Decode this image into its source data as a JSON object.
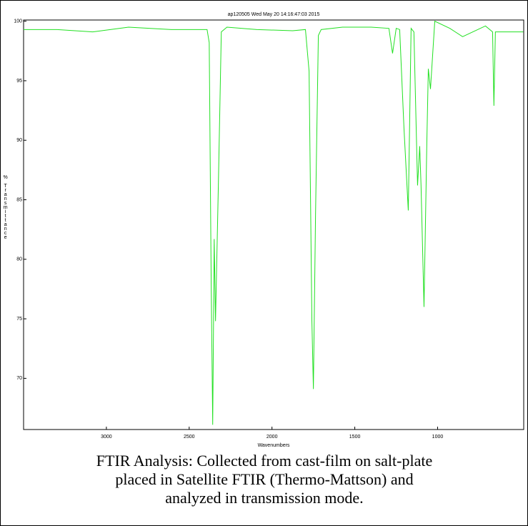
{
  "chart_data": {
    "type": "line",
    "title": "ap120505  Wed May 20 14:16:47:03 2015",
    "x_label": "Wavenumbers",
    "y_label": "% Transmittance",
    "caption": "FTIR Analysis: Collected from cast-film on salt-plate placed in Satellite FTIR (Thermo-Mattson) and analyzed in transmission mode.",
    "xlim": [
      3500,
      480
    ],
    "ylim": [
      65.7,
      100.1
    ],
    "xticks": [
      3000,
      2500,
      2000,
      1500,
      1000
    ],
    "yticks": [
      70,
      75,
      80,
      85,
      90,
      95,
      100
    ],
    "grid": false,
    "x": [
      3500,
      3297,
      3082,
      2866,
      2608,
      2392,
      2379,
      2367,
      2358,
      2349,
      2341,
      2323,
      2306,
      2272,
      2091,
      1875,
      1798,
      1776,
      1759,
      1750,
      1737,
      1720,
      1703,
      1574,
      1401,
      1294,
      1272,
      1250,
      1229,
      1203,
      1177,
      1160,
      1143,
      1121,
      1108,
      1100,
      1082,
      1065,
      1056,
      1043,
      1017,
      926,
      849,
      711,
      668,
      660,
      651,
      483
    ],
    "series": [
      {
        "name": "ap120505",
        "color": "#22e022",
        "values": [
          99.3,
          99.3,
          99.1,
          99.5,
          99.3,
          99.3,
          98.2,
          77.8,
          66.1,
          81.7,
          74.8,
          86.8,
          99.1,
          99.5,
          99.3,
          99.2,
          99.3,
          95.8,
          74.8,
          69.1,
          83.8,
          98.8,
          99.3,
          99.5,
          99.5,
          99.4,
          97.3,
          99.4,
          99.3,
          91.0,
          84.1,
          99.4,
          99.1,
          86.2,
          89.5,
          86.2,
          76.0,
          89.8,
          96.0,
          94.3,
          100.0,
          99.4,
          98.7,
          99.6,
          99.1,
          92.9,
          99.1,
          99.1
        ]
      }
    ]
  }
}
